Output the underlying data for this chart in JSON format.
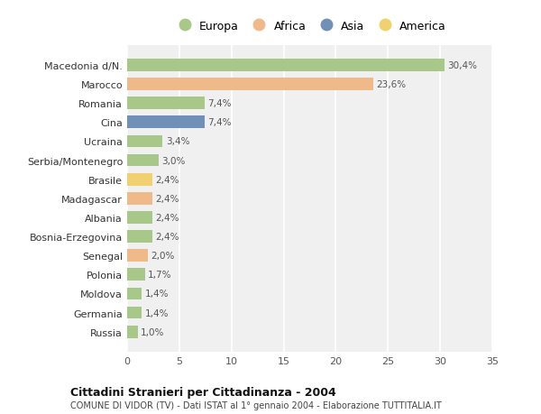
{
  "categories": [
    "Macedonia d/N.",
    "Marocco",
    "Romania",
    "Cina",
    "Ucraina",
    "Serbia/Montenegro",
    "Brasile",
    "Madagascar",
    "Albania",
    "Bosnia-Erzegovina",
    "Senegal",
    "Polonia",
    "Moldova",
    "Germania",
    "Russia"
  ],
  "values": [
    30.4,
    23.6,
    7.4,
    7.4,
    3.4,
    3.0,
    2.4,
    2.4,
    2.4,
    2.4,
    2.0,
    1.7,
    1.4,
    1.4,
    1.0
  ],
  "labels": [
    "30,4%",
    "23,6%",
    "7,4%",
    "7,4%",
    "3,4%",
    "3,0%",
    "2,4%",
    "2,4%",
    "2,4%",
    "2,4%",
    "2,0%",
    "1,7%",
    "1,4%",
    "1,4%",
    "1,0%"
  ],
  "colors": [
    "#a8c88a",
    "#f0b98a",
    "#a8c88a",
    "#7090b8",
    "#a8c88a",
    "#a8c88a",
    "#f0d070",
    "#f0b98a",
    "#a8c88a",
    "#a8c88a",
    "#f0b98a",
    "#a8c88a",
    "#a8c88a",
    "#a8c88a",
    "#a8c88a"
  ],
  "legend_labels": [
    "Europa",
    "Africa",
    "Asia",
    "America"
  ],
  "legend_colors": [
    "#a8c88a",
    "#f0b98a",
    "#7090b8",
    "#f0d070"
  ],
  "title": "Cittadini Stranieri per Cittadinanza - 2004",
  "subtitle": "COMUNE DI VIDOR (TV) - Dati ISTAT al 1° gennaio 2004 - Elaborazione TUTTITALIA.IT",
  "xlim": [
    0,
    35
  ],
  "xticks": [
    0,
    5,
    10,
    15,
    20,
    25,
    30,
    35
  ],
  "bg_color": "#ffffff",
  "plot_bg_color": "#f0f0f0",
  "grid_color": "#ffffff"
}
